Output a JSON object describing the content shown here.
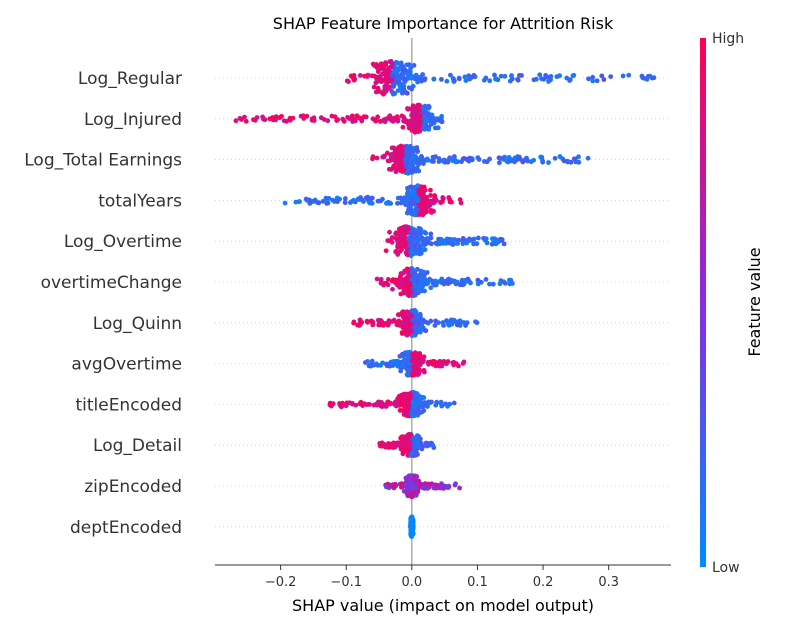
{
  "chart_data": {
    "type": "scatter",
    "subtype": "shap-beeswarm",
    "title": "SHAP Feature Importance for Attrition Risk",
    "xlabel": "SHAP value (impact on model output)",
    "xlim": [
      -0.3,
      0.395
    ],
    "xticks": [
      -0.2,
      -0.1,
      0.0,
      0.1,
      0.2,
      0.3
    ],
    "xtick_labels": [
      "−0.2",
      "−0.1",
      "0.0",
      "0.1",
      "0.2",
      "0.3"
    ],
    "colorbar": {
      "label": "Feature value",
      "high": "High",
      "low": "Low",
      "low_color": "#008bfb",
      "high_color": "#ff0052"
    },
    "features": [
      {
        "name": "Log_Regular",
        "min": -0.1,
        "max": 0.37,
        "center": -0.03,
        "spread": 0.018,
        "height": 0.85,
        "lowSide": "right"
      },
      {
        "name": "Log_Injured",
        "min": -0.27,
        "max": 0.05,
        "center": 0.013,
        "spread": 0.01,
        "height": 0.7,
        "lowSide": "right"
      },
      {
        "name": "Log_Total Earnings",
        "min": -0.065,
        "max": 0.275,
        "center": -0.01,
        "spread": 0.012,
        "height": 0.7,
        "lowSide": "right"
      },
      {
        "name": "totalYears",
        "min": -0.195,
        "max": 0.08,
        "center": 0.01,
        "spread": 0.01,
        "height": 0.75,
        "lowSide": "left"
      },
      {
        "name": "Log_Overtime",
        "min": -0.04,
        "max": 0.145,
        "center": -0.005,
        "spread": 0.012,
        "height": 0.75,
        "lowSide": "right"
      },
      {
        "name": "overtimeChange",
        "min": -0.055,
        "max": 0.155,
        "center": 0.0,
        "spread": 0.01,
        "height": 0.7,
        "lowSide": "right"
      },
      {
        "name": "Log_Quinn",
        "min": -0.09,
        "max": 0.1,
        "center": 0.0,
        "spread": 0.009,
        "height": 0.65,
        "lowSide": "right"
      },
      {
        "name": "avgOvertime",
        "min": -0.075,
        "max": 0.08,
        "center": 0.0,
        "spread": 0.008,
        "height": 0.6,
        "lowSide": "left"
      },
      {
        "name": "titleEncoded",
        "min": -0.125,
        "max": 0.065,
        "center": 0.0,
        "spread": 0.008,
        "height": 0.6,
        "lowSide": "right"
      },
      {
        "name": "Log_Detail",
        "min": -0.05,
        "max": 0.035,
        "center": -0.002,
        "spread": 0.007,
        "height": 0.55,
        "lowSide": "right"
      },
      {
        "name": "zipEncoded",
        "min": -0.04,
        "max": 0.075,
        "center": 0.0,
        "spread": 0.005,
        "height": 0.55,
        "lowSide": "mixed"
      },
      {
        "name": "deptEncoded",
        "min": -0.002,
        "max": 0.002,
        "center": 0.0,
        "spread": 0.001,
        "height": 0.5,
        "lowSide": "low"
      }
    ]
  }
}
